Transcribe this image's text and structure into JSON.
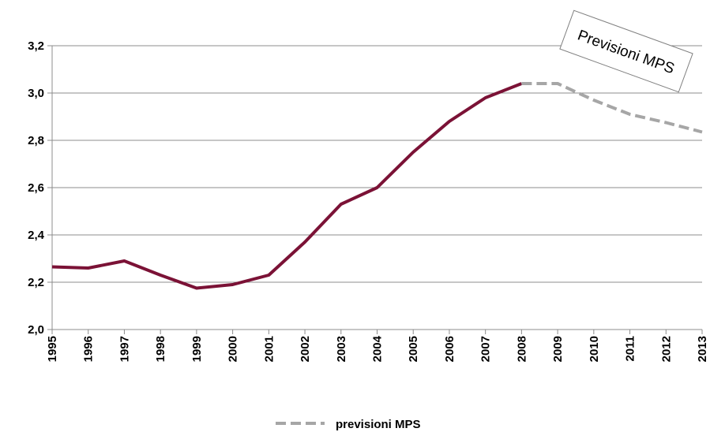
{
  "chart_data": {
    "type": "line",
    "categories": [
      "1995",
      "1996",
      "1997",
      "1998",
      "1999",
      "2000",
      "2001",
      "2002",
      "2003",
      "2004",
      "2005",
      "2006",
      "2007",
      "2008",
      "2009",
      "2010",
      "2011",
      "2012",
      "2013"
    ],
    "y_tick_labels": [
      "2,0",
      "2,2",
      "2,4",
      "2,6",
      "2,8",
      "3,0",
      "3,2"
    ],
    "ylim": [
      2.0,
      3.2
    ],
    "grid": true,
    "legend_position": "bottom",
    "series": [
      {
        "color": "#7b1236",
        "style": "solid",
        "values": [
          2.265,
          2.26,
          2.29,
          2.23,
          2.175,
          2.19,
          2.23,
          2.37,
          2.53,
          2.6,
          2.75,
          2.88,
          2.98,
          3.04,
          null,
          null,
          null,
          null,
          null
        ]
      },
      {
        "name": "previsioni MPS",
        "color": "#a6a6a6",
        "style": "dashed",
        "values": [
          null,
          null,
          null,
          null,
          null,
          null,
          null,
          null,
          null,
          null,
          null,
          null,
          null,
          3.04,
          3.04,
          2.97,
          2.91,
          2.875,
          2.835
        ]
      }
    ],
    "annotation": "Previsioni MPS"
  }
}
